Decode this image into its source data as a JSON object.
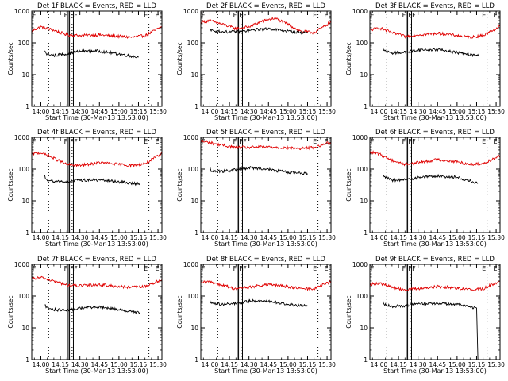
{
  "colors": {
    "events": "#000000",
    "lld": "#e00000",
    "axes": "#000000",
    "background": "#ffffff"
  },
  "chart_data": [
    {
      "type": "line",
      "title": "Det 1f BLACK = Events, RED = LLD",
      "xlabel": "Start Time (30-Mar-13 13:53:00)",
      "ylabel": "Counts/sec",
      "yscale": "log",
      "ylim": [
        1,
        1000
      ],
      "xlim": [
        "13:53",
        "15:33"
      ],
      "x_ticks": [
        "14:00",
        "14:15",
        "14:30",
        "14:45",
        "15:00",
        "15:15",
        "15:30"
      ],
      "y_ticks": [
        "1",
        "10",
        "100",
        "1000"
      ],
      "dotted_lines": [
        "14:06",
        "14:24",
        "15:23"
      ],
      "flag_lines": [
        "14:21",
        "14:22",
        "14:25"
      ],
      "flag_labels": [
        "F",
        "F",
        "F",
        "F",
        "E",
        "E"
      ],
      "series": [
        {
          "name": "LLD",
          "color": "red",
          "x": [
            "13:53",
            "14:00",
            "14:10",
            "14:20",
            "14:30",
            "14:45",
            "15:00",
            "15:10",
            "15:20",
            "15:33"
          ],
          "y": [
            240,
            320,
            250,
            180,
            170,
            180,
            160,
            150,
            170,
            320
          ]
        },
        {
          "name": "Events",
          "color": "black",
          "x": [
            "14:03",
            "14:04",
            "14:10",
            "14:20",
            "14:30",
            "14:45",
            "15:00",
            "15:10",
            "15:15"
          ],
          "y": [
            60,
            45,
            40,
            45,
            55,
            55,
            45,
            38,
            35
          ]
        }
      ]
    },
    {
      "type": "line",
      "title": "Det 2f BLACK = Events, RED = LLD",
      "xlabel": "Start Time (30-Mar-13 13:53:00)",
      "ylabel": "Counts/sec",
      "yscale": "log",
      "ylim": [
        1,
        1000
      ],
      "xlim": [
        "13:53",
        "15:33"
      ],
      "x_ticks": [
        "14:00",
        "14:15",
        "14:30",
        "14:45",
        "15:00",
        "15:15",
        "15:30"
      ],
      "y_ticks": [
        "1",
        "10",
        "100",
        "1000"
      ],
      "dotted_lines": [
        "14:06",
        "14:24",
        "15:23"
      ],
      "flag_lines": [
        "14:21",
        "14:22",
        "14:25"
      ],
      "flag_labels": [
        "F",
        "F",
        "F",
        "F",
        "E",
        "E"
      ],
      "series": [
        {
          "name": "LLD",
          "color": "red",
          "x": [
            "13:53",
            "14:00",
            "14:10",
            "14:20",
            "14:30",
            "14:40",
            "14:50",
            "15:00",
            "15:10",
            "15:20",
            "15:33"
          ],
          "y": [
            450,
            500,
            380,
            280,
            320,
            480,
            600,
            380,
            230,
            210,
            450
          ]
        },
        {
          "name": "Events",
          "color": "black",
          "x": [
            "14:00",
            "14:05",
            "14:15",
            "14:25",
            "14:35",
            "14:45",
            "14:55",
            "15:05",
            "15:15"
          ],
          "y": [
            250,
            230,
            220,
            230,
            260,
            280,
            250,
            220,
            210
          ]
        }
      ]
    },
    {
      "type": "line",
      "title": "Det 3f BLACK = Events, RED = LLD",
      "xlabel": "Start Time (30-Mar-13 13:53:00)",
      "ylabel": "Counts/sec",
      "yscale": "log",
      "ylim": [
        1,
        1000
      ],
      "xlim": [
        "13:53",
        "15:33"
      ],
      "x_ticks": [
        "14:00",
        "14:15",
        "14:30",
        "14:45",
        "15:00",
        "15:15",
        "15:30"
      ],
      "y_ticks": [
        "1",
        "10",
        "100",
        "1000"
      ],
      "dotted_lines": [
        "14:06",
        "14:24",
        "15:23"
      ],
      "flag_lines": [
        "14:21",
        "14:22",
        "14:25"
      ],
      "flag_labels": [
        "F",
        "F",
        "F",
        "F",
        "E",
        "E"
      ],
      "series": [
        {
          "name": "LLD",
          "color": "red",
          "x": [
            "13:53",
            "14:00",
            "14:10",
            "14:20",
            "14:30",
            "14:45",
            "15:00",
            "15:10",
            "15:20",
            "15:33"
          ],
          "y": [
            250,
            300,
            210,
            160,
            180,
            200,
            170,
            150,
            170,
            330
          ]
        },
        {
          "name": "Events",
          "color": "black",
          "x": [
            "14:03",
            "14:04",
            "14:10",
            "14:20",
            "14:30",
            "14:45",
            "15:00",
            "15:10",
            "15:17"
          ],
          "y": [
            75,
            55,
            48,
            50,
            60,
            62,
            50,
            42,
            40
          ]
        }
      ]
    },
    {
      "type": "line",
      "title": "Det 4f BLACK = Events, RED = LLD",
      "xlabel": "Start Time (30-Mar-13 13:53:00)",
      "ylabel": "Counts/sec",
      "yscale": "log",
      "ylim": [
        1,
        1000
      ],
      "xlim": [
        "13:53",
        "15:33"
      ],
      "x_ticks": [
        "14:00",
        "14:15",
        "14:30",
        "14:45",
        "15:00",
        "15:15",
        "15:30"
      ],
      "y_ticks": [
        "1",
        "10",
        "100",
        "1000"
      ],
      "dotted_lines": [
        "14:06",
        "14:24",
        "15:23"
      ],
      "flag_lines": [
        "14:21",
        "14:22",
        "14:25"
      ],
      "flag_labels": [
        "F",
        "F",
        "F",
        "F",
        "E",
        "E"
      ],
      "series": [
        {
          "name": "LLD",
          "color": "red",
          "x": [
            "13:53",
            "14:00",
            "14:10",
            "14:20",
            "14:30",
            "14:45",
            "15:00",
            "15:10",
            "15:20",
            "15:33"
          ],
          "y": [
            300,
            330,
            220,
            140,
            130,
            160,
            140,
            130,
            150,
            300
          ]
        },
        {
          "name": "Events",
          "color": "black",
          "x": [
            "14:03",
            "14:04",
            "14:10",
            "14:20",
            "14:30",
            "14:45",
            "15:00",
            "15:10",
            "15:16"
          ],
          "y": [
            60,
            48,
            42,
            40,
            45,
            45,
            40,
            35,
            35
          ]
        }
      ]
    },
    {
      "type": "line",
      "title": "Det 5f BLACK = Events, RED = LLD",
      "xlabel": "Start Time (30-Mar-13 13:53:00)",
      "ylabel": "Counts/sec",
      "yscale": "log",
      "ylim": [
        1,
        1000
      ],
      "xlim": [
        "13:53",
        "15:33"
      ],
      "x_ticks": [
        "14:00",
        "14:15",
        "14:30",
        "14:45",
        "15:00",
        "15:15",
        "15:30"
      ],
      "y_ticks": [
        "1",
        "10",
        "100",
        "1000"
      ],
      "dotted_lines": [
        "14:06",
        "14:24",
        "15:23"
      ],
      "flag_lines": [
        "14:21",
        "14:22",
        "14:25"
      ],
      "flag_labels": [
        "F",
        "F",
        "F",
        "F",
        "E",
        "E"
      ],
      "series": [
        {
          "name": "LLD",
          "color": "red",
          "x": [
            "13:53",
            "14:00",
            "14:10",
            "14:20",
            "14:30",
            "14:45",
            "15:00",
            "15:10",
            "15:20",
            "15:33"
          ],
          "y": [
            750,
            680,
            560,
            480,
            480,
            500,
            460,
            440,
            480,
            720
          ]
        },
        {
          "name": "Events",
          "color": "black",
          "x": [
            "14:00",
            "14:01",
            "14:10",
            "14:20",
            "14:30",
            "14:40",
            "14:50",
            "15:00",
            "15:10",
            "15:15"
          ],
          "y": [
            110,
            90,
            85,
            95,
            110,
            105,
            90,
            80,
            75,
            72
          ]
        }
      ]
    },
    {
      "type": "line",
      "title": "Det 6f BLACK = Events, RED = LLD",
      "xlabel": "Start Time (30-Mar-13 13:53:00)",
      "ylabel": "Counts/sec",
      "yscale": "log",
      "ylim": [
        1,
        1000
      ],
      "xlim": [
        "13:53",
        "15:33"
      ],
      "x_ticks": [
        "14:00",
        "14:15",
        "14:30",
        "14:45",
        "15:00",
        "15:15",
        "15:30"
      ],
      "y_ticks": [
        "1",
        "10",
        "100",
        "1000"
      ],
      "dotted_lines": [
        "14:06",
        "14:24",
        "15:23"
      ],
      "flag_lines": [
        "14:21",
        "14:22",
        "14:25"
      ],
      "flag_labels": [
        "F",
        "F",
        "F",
        "F",
        "E",
        "E"
      ],
      "series": [
        {
          "name": "LLD",
          "color": "red",
          "x": [
            "13:53",
            "14:00",
            "14:10",
            "14:20",
            "14:30",
            "14:45",
            "15:00",
            "15:10",
            "15:20",
            "15:33"
          ],
          "y": [
            350,
            300,
            190,
            140,
            160,
            200,
            170,
            140,
            150,
            270
          ]
        },
        {
          "name": "Events",
          "color": "black",
          "x": [
            "14:03",
            "14:04",
            "14:10",
            "14:20",
            "14:30",
            "14:45",
            "15:00",
            "15:10",
            "15:16"
          ],
          "y": [
            70,
            55,
            45,
            45,
            55,
            60,
            55,
            42,
            35
          ]
        }
      ]
    },
    {
      "type": "line",
      "title": "Det 7f BLACK = Events, RED = LLD",
      "xlabel": "Start Time (30-Mar-13 13:53:00)",
      "ylabel": "Counts/sec",
      "yscale": "log",
      "ylim": [
        1,
        1000
      ],
      "xlim": [
        "13:53",
        "15:33"
      ],
      "x_ticks": [
        "14:00",
        "14:15",
        "14:30",
        "14:45",
        "15:00",
        "15:15",
        "15:30"
      ],
      "y_ticks": [
        "1",
        "10",
        "100",
        "1000"
      ],
      "dotted_lines": [
        "14:06",
        "14:24",
        "15:23"
      ],
      "flag_lines": [
        "14:21",
        "14:22",
        "14:25"
      ],
      "flag_labels": [
        "F",
        "F",
        "F",
        "F",
        "E",
        "E"
      ],
      "series": [
        {
          "name": "LLD",
          "color": "red",
          "x": [
            "13:53",
            "14:00",
            "14:10",
            "14:20",
            "14:30",
            "14:45",
            "15:00",
            "15:10",
            "15:20",
            "15:33"
          ],
          "y": [
            350,
            380,
            300,
            220,
            210,
            230,
            200,
            190,
            200,
            330
          ]
        },
        {
          "name": "Events",
          "color": "black",
          "x": [
            "14:03",
            "14:04",
            "14:10",
            "14:20",
            "14:30",
            "14:45",
            "15:00",
            "15:10",
            "15:16"
          ],
          "y": [
            55,
            45,
            38,
            35,
            42,
            45,
            38,
            32,
            30
          ]
        }
      ]
    },
    {
      "type": "line",
      "title": "Det 8f BLACK = Events, RED = LLD",
      "xlabel": "Start Time (30-Mar-13 13:53:00)",
      "ylabel": "Counts/sec",
      "yscale": "log",
      "ylim": [
        1,
        1000
      ],
      "xlim": [
        "13:53",
        "15:33"
      ],
      "x_ticks": [
        "14:00",
        "14:15",
        "14:30",
        "14:45",
        "15:00",
        "15:15",
        "15:30"
      ],
      "y_ticks": [
        "1",
        "10",
        "100",
        "1000"
      ],
      "dotted_lines": [
        "14:06",
        "14:24",
        "15:23"
      ],
      "flag_lines": [
        "14:21",
        "14:22",
        "14:25"
      ],
      "flag_labels": [
        "F",
        "F",
        "F",
        "F",
        "E",
        "E"
      ],
      "series": [
        {
          "name": "LLD",
          "color": "red",
          "x": [
            "13:53",
            "14:00",
            "14:10",
            "14:20",
            "14:30",
            "14:45",
            "15:00",
            "15:10",
            "15:20",
            "15:33"
          ],
          "y": [
            260,
            290,
            220,
            170,
            190,
            230,
            200,
            170,
            170,
            290
          ]
        },
        {
          "name": "Events",
          "color": "black",
          "x": [
            "14:00",
            "14:01",
            "14:10",
            "14:20",
            "14:30",
            "14:40",
            "14:50",
            "15:00",
            "15:10",
            "15:15"
          ],
          "y": [
            75,
            60,
            55,
            58,
            70,
            72,
            65,
            55,
            50,
            48
          ]
        }
      ]
    },
    {
      "type": "line",
      "title": "Det 9f BLACK = Events, RED = LLD",
      "xlabel": "Start Time (30-Mar-13 13:53:00)",
      "ylabel": "Counts/sec",
      "yscale": "log",
      "ylim": [
        1,
        1000
      ],
      "xlim": [
        "13:53",
        "15:33"
      ],
      "x_ticks": [
        "14:00",
        "14:15",
        "14:30",
        "14:45",
        "15:00",
        "15:15",
        "15:30"
      ],
      "y_ticks": [
        "1",
        "10",
        "100",
        "1000"
      ],
      "dotted_lines": [
        "14:06",
        "14:24",
        "15:23"
      ],
      "flag_lines": [
        "14:21",
        "14:22",
        "14:25"
      ],
      "flag_labels": [
        "F",
        "F",
        "F",
        "F",
        "E",
        "E"
      ],
      "series": [
        {
          "name": "LLD",
          "color": "red",
          "x": [
            "13:53",
            "14:00",
            "14:10",
            "14:20",
            "14:30",
            "14:45",
            "15:00",
            "15:10",
            "15:20",
            "15:33"
          ],
          "y": [
            230,
            260,
            190,
            160,
            170,
            200,
            180,
            160,
            170,
            300
          ]
        },
        {
          "name": "Events",
          "color": "black",
          "x": [
            "14:03",
            "14:04",
            "14:10",
            "14:20",
            "14:30",
            "14:45",
            "15:00",
            "15:10",
            "15:15",
            "15:16"
          ],
          "y": [
            70,
            55,
            48,
            50,
            58,
            60,
            55,
            45,
            42,
            1
          ]
        }
      ]
    }
  ]
}
